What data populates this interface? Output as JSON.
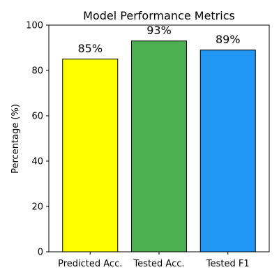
{
  "chart_data": {
    "type": "bar",
    "title": "Model Performance Metrics",
    "xlabel": "",
    "ylabel": "Percentage (%)",
    "categories": [
      "Predicted Acc.",
      "Tested Acc.",
      "Tested F1"
    ],
    "values": [
      85,
      93,
      89
    ],
    "data_labels": [
      "85%",
      "93%",
      "89%"
    ],
    "colors": [
      "#ffff00",
      "#4caf50",
      "#2196f3"
    ],
    "ylim": [
      0,
      100
    ],
    "yticks": [
      0,
      20,
      40,
      60,
      80,
      100
    ],
    "grid": false,
    "legend": "none"
  }
}
